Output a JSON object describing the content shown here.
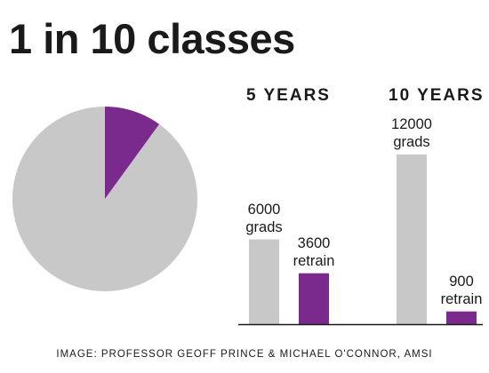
{
  "title": "1 in 10 classes",
  "credit": "IMAGE: PROFESSOR GEOFF PRINCE & MICHAEL O'CONNOR, AMSI",
  "colors": {
    "gray": "#c8c8c8",
    "purple": "#7a2a8c",
    "axis": "#1a1a1a"
  },
  "chart_data": [
    {
      "type": "pie",
      "title": "",
      "slices": [
        {
          "name": "",
          "value": 10,
          "color": "#7a2a8c"
        },
        {
          "name": "",
          "value": 90,
          "color": "#c8c8c8"
        }
      ]
    },
    {
      "type": "bar",
      "groups": [
        {
          "title": "5 YEARS",
          "bars": [
            {
              "value": 6000,
              "label_number": "6000",
              "label_text": "grads",
              "color": "#c8c8c8"
            },
            {
              "value": 3600,
              "label_number": "3600",
              "label_text": "retrain",
              "color": "#7a2a8c"
            }
          ]
        },
        {
          "title": "10 YEARS",
          "bars": [
            {
              "value": 12000,
              "label_number": "12000",
              "label_text": "grads",
              "color": "#c8c8c8"
            },
            {
              "value": 900,
              "label_number": "900",
              "label_text": "retrain",
              "color": "#7a2a8c"
            }
          ]
        }
      ]
    }
  ]
}
